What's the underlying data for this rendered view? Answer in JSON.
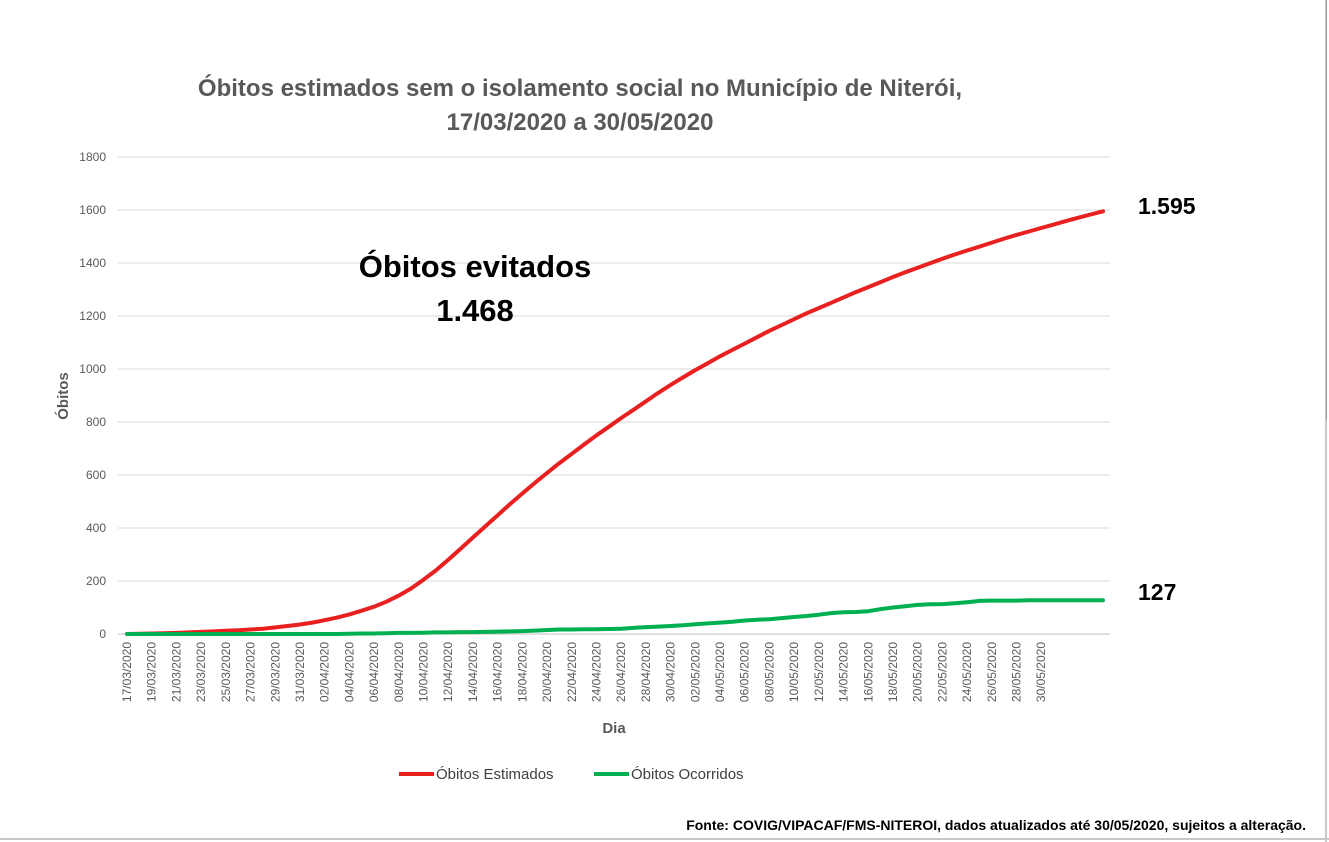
{
  "chart_data": {
    "type": "line",
    "title_line1": "Óbitos estimados sem o isolamento social no Município de Niterói,",
    "title_line2": "17/03/2020 a 30/05/2020",
    "xlabel": "Dia",
    "ylabel": "Óbitos",
    "ylim": [
      0,
      1800
    ],
    "yticks": [
      0,
      200,
      400,
      600,
      800,
      1000,
      1200,
      1400,
      1600,
      1800
    ],
    "x_tick_labels": [
      "17/03/2020",
      "19/03/2020",
      "21/03/2020",
      "23/03/2020",
      "25/03/2020",
      "27/03/2020",
      "29/03/2020",
      "31/03/2020",
      "02/04/2020",
      "04/04/2020",
      "06/04/2020",
      "08/04/2020",
      "10/04/2020",
      "12/04/2020",
      "14/04/2020",
      "16/04/2020",
      "18/04/2020",
      "20/04/2020",
      "22/04/2020",
      "24/04/2020",
      "26/04/2020",
      "28/04/2020",
      "30/04/2020",
      "02/05/2020",
      "04/05/2020",
      "06/05/2020",
      "08/05/2020",
      "10/05/2020",
      "12/05/2020",
      "14/05/2020",
      "16/05/2020",
      "18/05/2020",
      "20/05/2020",
      "22/05/2020",
      "24/05/2020",
      "26/05/2020",
      "28/05/2020",
      "30/05/2020"
    ],
    "grid": true,
    "legend_position": "bottom",
    "series": [
      {
        "name": "Óbitos Estimados",
        "color": "#e8201f",
        "values": [
          0,
          1,
          2,
          3,
          4,
          6,
          8,
          10,
          12,
          14,
          17,
          20,
          25,
          30,
          36,
          43,
          52,
          62,
          74,
          88,
          103,
          122,
          145,
          172,
          205,
          240,
          280,
          322,
          364,
          406,
          448,
          490,
          530,
          570,
          608,
          645,
          680,
          715,
          750,
          782,
          815,
          846,
          878,
          910,
          940,
          968,
          996,
          1022,
          1048,
          1072,
          1096,
          1120,
          1144,
          1166,
          1188,
          1210,
          1230,
          1250,
          1270,
          1290,
          1309,
          1328,
          1347,
          1365,
          1382,
          1399,
          1416,
          1432,
          1447,
          1462,
          1477,
          1492,
          1506,
          1519,
          1532,
          1545,
          1558,
          1571,
          1583,
          1595
        ]
      },
      {
        "name": "Óbitos Ocorridos",
        "color": "#00b050",
        "values": [
          0,
          0,
          0,
          0,
          0,
          0,
          0,
          0,
          0,
          0,
          0,
          0,
          0,
          0,
          0,
          0,
          0,
          0,
          1,
          2,
          2,
          3,
          4,
          4,
          5,
          6,
          6,
          7,
          7,
          8,
          9,
          10,
          11,
          13,
          15,
          17,
          17,
          18,
          18,
          19,
          20,
          23,
          26,
          28,
          30,
          33,
          37,
          40,
          43,
          46,
          51,
          54,
          56,
          60,
          64,
          68,
          73,
          79,
          82,
          83,
          86,
          94,
          100,
          105,
          110,
          112,
          113,
          116,
          120,
          125,
          126,
          126,
          126,
          127,
          127,
          127,
          127,
          127,
          127,
          127
        ]
      }
    ],
    "annotations": {
      "evitados_label": "Óbitos evitados",
      "evitados_value": "1.468",
      "end_estimados": "1.595",
      "end_ocorridos": "127"
    },
    "source_note": "Fonte: COVIG/VIPACAF/FMS-NITEROI, dados atualizados até 30/05/2020, sujeitos a alteração."
  }
}
